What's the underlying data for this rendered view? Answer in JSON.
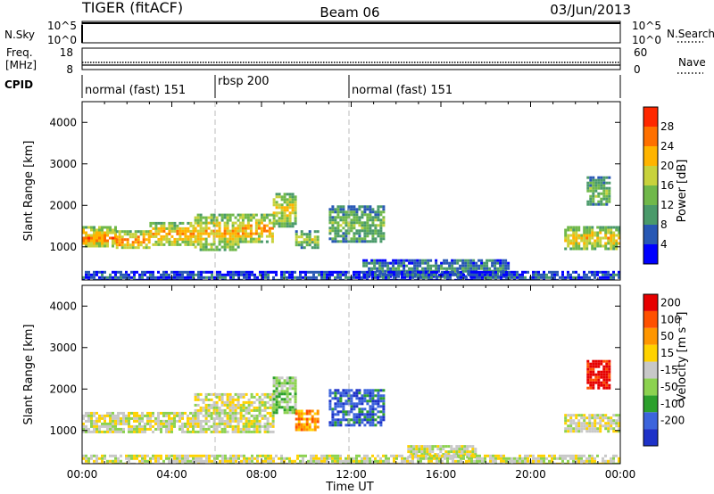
{
  "header": {
    "radar": "TIGER (fitACF)",
    "beam": "Beam 06",
    "date": "03/Jun/2013"
  },
  "panels": {
    "nsky": {
      "label": "N.Sky",
      "ticks_left": [
        "10^5",
        "10^0"
      ],
      "ticks_right": [
        "10^5",
        "10^0"
      ],
      "right_label": "N.Search"
    },
    "freq": {
      "label": "Freq.",
      "unit": "[MHz]",
      "ticks_left": [
        "18",
        "8"
      ],
      "ticks_right": [
        "60",
        "0"
      ],
      "right_label": "Nave"
    },
    "cpid": {
      "label": "CPID",
      "segments": [
        {
          "label": "normal (fast) 151",
          "start_h": 0,
          "end_h": 6
        },
        {
          "label": "rbsp 200",
          "start_h": 6,
          "end_h": 12
        },
        {
          "label": "normal (fast) 151",
          "start_h": 12,
          "end_h": 24
        }
      ]
    }
  },
  "colors": {
    "power": [
      "#0000ff",
      "#2858b4",
      "#4a9a6a",
      "#70b84a",
      "#c8d23c",
      "#ffb400",
      "#ff7000",
      "#ff2800"
    ],
    "velocity": [
      "#1e32c8",
      "#3c64dc",
      "#2ca02c",
      "#8cd250",
      "#c8c8c8",
      "#ffd200",
      "#ff9600",
      "#ff5000",
      "#e60000"
    ]
  },
  "chart_data": [
    {
      "type": "heatmap",
      "name": "power",
      "ylabel": "Slant Range [km]",
      "xlabel": "Time UT",
      "xlim": [
        0,
        24
      ],
      "ylim": [
        200,
        4500
      ],
      "x_ticks": [
        "00:00",
        "04:00",
        "08:00",
        "12:00",
        "16:00",
        "20:00",
        "00:00"
      ],
      "y_ticks": [
        1000,
        2000,
        3000,
        4000
      ],
      "colorbar": {
        "label": "Power [dB]",
        "ticks": [
          "4",
          "8",
          "12",
          "16",
          "20",
          "24",
          "28"
        ],
        "range": [
          0,
          32
        ]
      },
      "bands": [
        {
          "t0": 0.0,
          "t1": 1.5,
          "r_lo": 1000,
          "r_hi": 1500,
          "level": 0.8
        },
        {
          "t0": 1.5,
          "t1": 3.0,
          "r_lo": 950,
          "r_hi": 1400,
          "level": 0.8
        },
        {
          "t0": 3.0,
          "t1": 5.0,
          "r_lo": 1050,
          "r_hi": 1600,
          "level": 0.75
        },
        {
          "t0": 5.0,
          "t1": 7.0,
          "r_lo": 950,
          "r_hi": 1800,
          "level": 0.7
        },
        {
          "t0": 7.0,
          "t1": 8.5,
          "r_lo": 1100,
          "r_hi": 1800,
          "level": 0.75
        },
        {
          "t0": 8.5,
          "t1": 9.5,
          "r_lo": 1500,
          "r_hi": 2300,
          "level": 0.65
        },
        {
          "t0": 9.5,
          "t1": 10.5,
          "r_lo": 1000,
          "r_hi": 1400,
          "level": 0.55
        },
        {
          "t0": 11.0,
          "t1": 13.5,
          "r_lo": 1100,
          "r_hi": 2000,
          "level": 0.45
        },
        {
          "t0": 12.5,
          "t1": 19.0,
          "r_lo": 250,
          "r_hi": 700,
          "level": 0.3
        },
        {
          "t0": 21.5,
          "t1": 24.0,
          "r_lo": 950,
          "r_hi": 1500,
          "level": 0.7
        },
        {
          "t0": 22.5,
          "t1": 23.5,
          "r_lo": 2000,
          "r_hi": 2700,
          "level": 0.45
        },
        {
          "t0": 0.0,
          "t1": 24.0,
          "r_lo": 200,
          "r_hi": 420,
          "level": 0.2
        }
      ]
    },
    {
      "type": "heatmap",
      "name": "velocity",
      "ylabel": "Slant Range [km]",
      "xlabel": "Time UT",
      "xlim": [
        0,
        24
      ],
      "ylim": [
        200,
        4500
      ],
      "x_ticks": [
        "00:00",
        "04:00",
        "08:00",
        "12:00",
        "16:00",
        "20:00",
        "00:00"
      ],
      "y_ticks": [
        1000,
        2000,
        3000,
        4000
      ],
      "colorbar": {
        "label": "Velocity [m s⁻¹]",
        "ticks": [
          "200",
          "100",
          "50",
          "15",
          "-15",
          "-50",
          "-100",
          "-200"
        ]
      },
      "bands": [
        {
          "t0": 0.0,
          "t1": 5.0,
          "r_lo": 950,
          "r_hi": 1450,
          "level": 4
        },
        {
          "t0": 5.0,
          "t1": 8.5,
          "r_lo": 950,
          "r_hi": 1900,
          "level": 4
        },
        {
          "t0": 8.5,
          "t1": 9.5,
          "r_lo": 1400,
          "r_hi": 2300,
          "level": 3
        },
        {
          "t0": 9.5,
          "t1": 10.5,
          "r_lo": 1000,
          "r_hi": 1500,
          "level": 6
        },
        {
          "t0": 11.0,
          "t1": 13.5,
          "r_lo": 1100,
          "r_hi": 2000,
          "level": 1
        },
        {
          "t0": 14.5,
          "t1": 17.5,
          "r_lo": 350,
          "r_hi": 650,
          "level": 4
        },
        {
          "t0": 21.5,
          "t1": 24.0,
          "r_lo": 950,
          "r_hi": 1400,
          "level": 4
        },
        {
          "t0": 22.5,
          "t1": 23.5,
          "r_lo": 2000,
          "r_hi": 2700,
          "level": 8
        },
        {
          "t0": 0.0,
          "t1": 24.0,
          "r_lo": 200,
          "r_hi": 420,
          "level": 4
        }
      ]
    }
  ]
}
